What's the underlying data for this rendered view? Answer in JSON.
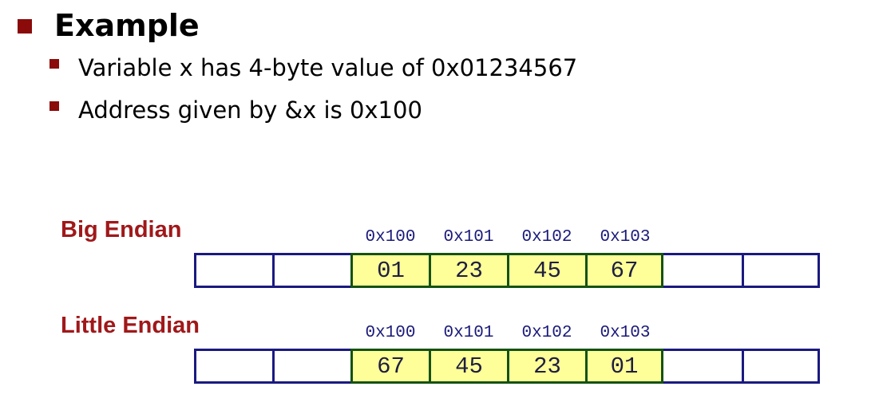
{
  "heading": "Example",
  "bullets": [
    "Variable x has 4-byte value of 0x01234567",
    "Address given by &x is 0x100"
  ],
  "addresses": [
    "0x100",
    "0x101",
    "0x102",
    "0x103"
  ],
  "big_endian": {
    "label": "Big Endian",
    "bytes": [
      "01",
      "23",
      "45",
      "67"
    ]
  },
  "little_endian": {
    "label": "Little Endian",
    "bytes": [
      "67",
      "45",
      "23",
      "01"
    ]
  },
  "colors": {
    "bullet": "#8b0a0a",
    "label": "#a0181a",
    "address_text": "#1a1a7a",
    "empty_cell_border": "#1a1a80",
    "filled_cell_border": "#145214",
    "filled_cell_fill": "#ffff99"
  }
}
